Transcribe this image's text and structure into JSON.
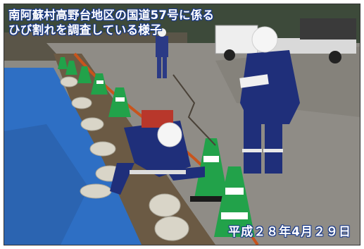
{
  "caption": {
    "line1": "南阿蘇村高野台地区の国道57号に係る",
    "line2": "ひび割れを調査している様子"
  },
  "date": "平成２８年4月２９日",
  "colors": {
    "tarp_blue": "#2e6fc4",
    "worker_navy": "#1f2f7a",
    "cone_green": "#22a24a",
    "cable_orange": "#c8541c",
    "caption_text": "#ffffff"
  }
}
